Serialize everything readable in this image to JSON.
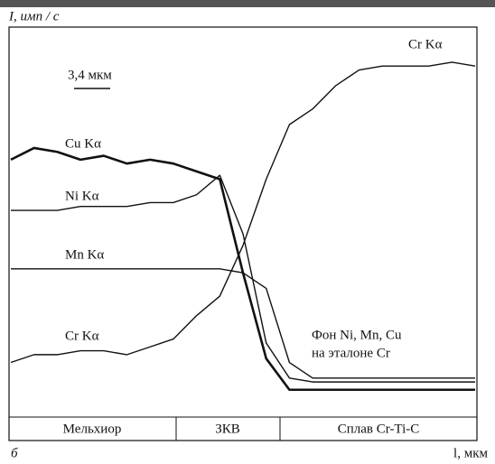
{
  "chart_data": {
    "type": "line",
    "y_label": "I, имп / с",
    "x_label": "l, мкм",
    "panel": "б",
    "scale_bar": "3,4 мкм",
    "annotation": [
      "Фон Ni, Mn, Cu",
      "на эталоне Cr"
    ],
    "regions": [
      "Мельхиор",
      "ЗКВ",
      "Сплав Cr-Ti-C"
    ],
    "xlim": [
      0,
      100
    ],
    "ylim": [
      0,
      100
    ],
    "x": [
      0,
      5,
      10,
      15,
      20,
      25,
      30,
      35,
      40,
      45,
      50,
      55,
      60,
      65,
      70,
      75,
      80,
      85,
      90,
      95,
      100
    ],
    "series": [
      {
        "name": "Cu Kα",
        "color": "#111",
        "values": [
          66,
          69,
          68,
          66,
          67,
          65,
          66,
          65,
          63,
          61,
          37,
          15,
          7,
          7,
          7,
          7,
          7,
          7,
          7,
          7,
          7
        ]
      },
      {
        "name": "Ni Kα",
        "color": "#111",
        "values": [
          53,
          53,
          53,
          54,
          54,
          54,
          55,
          55,
          57,
          62,
          47,
          19,
          10,
          9,
          9,
          9,
          9,
          9,
          9,
          9,
          9
        ]
      },
      {
        "name": "Mn Kα",
        "color": "#111",
        "values": [
          38,
          38,
          38,
          38,
          38,
          38,
          38,
          38,
          38,
          38,
          37,
          33,
          14,
          10,
          10,
          10,
          10,
          10,
          10,
          10,
          10
        ]
      },
      {
        "name": "Cr Kα",
        "color": "#111",
        "values": [
          14,
          16,
          16,
          17,
          17,
          16,
          18,
          20,
          26,
          31,
          44,
          61,
          75,
          79,
          85,
          89,
          90,
          90,
          90,
          91,
          90
        ]
      }
    ]
  }
}
